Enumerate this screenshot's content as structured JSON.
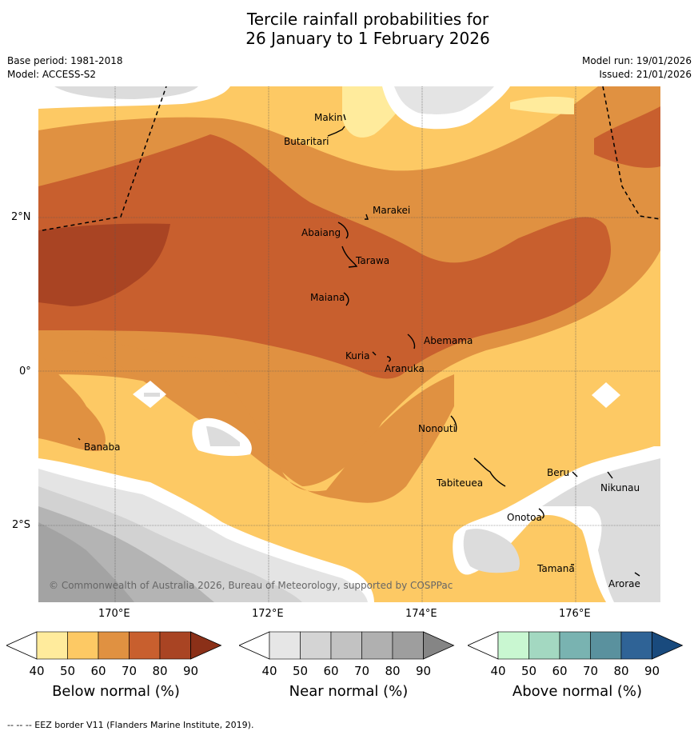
{
  "title_line1": "Tercile rainfall probabilities for",
  "title_line2": "26 January to 1 February 2026",
  "base_period": "Base period: 1981-2018",
  "model": "Model: ACCESS-S2",
  "model_run": "Model run: 19/01/2026",
  "issued": "Issued: 21/01/2026",
  "lon_ticks": [
    "170°E",
    "172°E",
    "174°E",
    "176°E"
  ],
  "lat_ticks": [
    "2°N",
    "0°",
    "2°S"
  ],
  "places": [
    "Makin",
    "Butaritari",
    "Marakei",
    "Abaiang",
    "Tarawa",
    "Maiana",
    "Abemama",
    "Kuria",
    "Aranuka",
    "Nonouti",
    "Banaba",
    "Tabiteuea",
    "Beru",
    "Nikunau",
    "Onotoa",
    "Tamana",
    "Arorae"
  ],
  "copyright": "© Commonwealth of Australia 2026, Bureau of Meteorology, supported by COSPPac",
  "colorbars": [
    {
      "title": "Below normal (%)",
      "ticks": [
        "40",
        "50",
        "60",
        "70",
        "80",
        "90"
      ],
      "colors": [
        "#ffeb9c",
        "#fdc964",
        "#e09141",
        "#c85f2e",
        "#a94423",
        "#8b3018"
      ]
    },
    {
      "title": "Near normal (%)",
      "ticks": [
        "40",
        "50",
        "60",
        "70",
        "80",
        "90"
      ],
      "colors": [
        "#e6e6e6",
        "#d4d4d4",
        "#c2c2c2",
        "#b0b0b0",
        "#9e9e9e",
        "#858585"
      ]
    },
    {
      "title": "Above normal (%)",
      "ticks": [
        "40",
        "50",
        "60",
        "70",
        "80",
        "90"
      ],
      "colors": [
        "#c9f7d1",
        "#a3d8c1",
        "#79b3b1",
        "#5a919e",
        "#2f6396",
        "#194a7d"
      ]
    }
  ],
  "footnote": "-- -- -- EEZ border V11 (Flanders Marine Institute, 2019)."
}
